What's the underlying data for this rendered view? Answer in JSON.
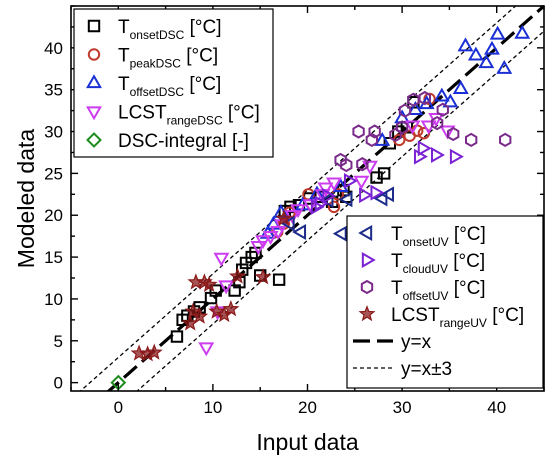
{
  "chart_data": {
    "type": "scatter",
    "xlabel": "Input data",
    "ylabel": "Modeled data",
    "xlim": [
      -5,
      45
    ],
    "ylim": [
      -1,
      45
    ],
    "x_ticks": [
      0,
      10,
      20,
      30,
      40
    ],
    "y_ticks": [
      0,
      5,
      10,
      15,
      20,
      25,
      30,
      35,
      40
    ],
    "grid": false,
    "legends": [
      {
        "position": "top-left",
        "entries": [
          {
            "series": 0,
            "main": "T",
            "sub": "onsetDSC",
            "tail": " [°C]"
          },
          {
            "series": 1,
            "main": "T",
            "sub": "peakDSC",
            "tail": " [°C]"
          },
          {
            "series": 2,
            "main": "T",
            "sub": "offsetDSC",
            "tail": " [°C]"
          },
          {
            "series": 3,
            "main": "LCST",
            "sub": "rangeDSC",
            "tail": " [°C]"
          },
          {
            "series": 4,
            "main": "DSC-integral [-]",
            "sub": "",
            "tail": ""
          }
        ]
      },
      {
        "position": "bottom-right",
        "entries": [
          {
            "series": 5,
            "main": "T",
            "sub": "onsetUV",
            "tail": " [°C]"
          },
          {
            "series": 6,
            "main": "T",
            "sub": "cloudUV",
            "tail": " [°C]"
          },
          {
            "series": 7,
            "main": "T",
            "sub": "offsetUV",
            "tail": " [°C]"
          },
          {
            "series": 8,
            "main": "LCST",
            "sub": "rangeUV",
            "tail": " [°C]"
          },
          {
            "line": "y_equals_x",
            "main": "y=x",
            "sub": "",
            "tail": ""
          },
          {
            "line": "y_equals_x_pm3",
            "main": "y=x±3",
            "sub": "",
            "tail": ""
          }
        ]
      }
    ],
    "reference_lines": [
      {
        "id": "y_equals_x",
        "offset": 0,
        "style": "long-dash",
        "color": "#000000"
      },
      {
        "id": "y_equals_x_pm3",
        "offset": 3,
        "style": "short-dash",
        "color": "#000000"
      },
      {
        "id": "y_equals_x_pm3",
        "offset": -3,
        "style": "short-dash",
        "color": "#000000"
      }
    ],
    "series": [
      {
        "marker": "square",
        "color": "#000000",
        "x": [
          6.2,
          6.8,
          7.3,
          8.0,
          8.6,
          9.8,
          10.3,
          12.3,
          12.8,
          13.1,
          13.5,
          14.1,
          14.5,
          15.0,
          17.0,
          17.6,
          18.2,
          19.1,
          20.2,
          21.4,
          22.6,
          23.8,
          24.1,
          27.3,
          28.1,
          28.7,
          29.6,
          30.5,
          31.2
        ],
        "y": [
          5.5,
          7.5,
          8.0,
          8.5,
          9.0,
          10.1,
          11.0,
          11.0,
          12.0,
          13.5,
          14.3,
          15.0,
          15.5,
          12.8,
          12.3,
          20.5,
          21.0,
          21.2,
          22.0,
          22.2,
          21.6,
          23.0,
          22.2,
          24.5,
          25.0,
          28.6,
          30.0,
          30.5,
          33.5
        ]
      },
      {
        "marker": "circle",
        "color": "#c0392b",
        "x": [
          16.8,
          17.5,
          18.1,
          20.1,
          22.8,
          23.2,
          29.7,
          30.8,
          31.6,
          32.3,
          32.9
        ],
        "y": [
          18.0,
          19.0,
          20.3,
          22.5,
          21.0,
          22.5,
          29.0,
          29.5,
          30.1,
          29.8,
          33.9
        ]
      },
      {
        "marker": "triangle-up",
        "color": "#1a2fd6",
        "x": [
          15.8,
          16.4,
          17.2,
          19.5,
          21.0,
          23.5,
          27.9,
          30.0,
          31.4,
          32.6,
          34.2,
          35.1,
          36.2,
          36.7,
          37.8,
          38.9,
          39.5,
          40.1,
          40.8,
          42.7
        ],
        "y": [
          17.8,
          18.9,
          20.3,
          21.2,
          22.5,
          23.4,
          28.9,
          31.6,
          32.6,
          33.3,
          34.2,
          33.5,
          35.1,
          40.2,
          39.1,
          38.2,
          39.8,
          41.6,
          37.5,
          41.7
        ]
      },
      {
        "marker": "triangle-down",
        "color": "#cc3cf0",
        "x": [
          9.3,
          10.5,
          10.9,
          11.4,
          14.8,
          15.3,
          16.1,
          16.9,
          17.3,
          18.4,
          19.0,
          20.3,
          21.6,
          21.9,
          22.8,
          25.7,
          26.6,
          31.1,
          32.8,
          33.6,
          34.8
        ],
        "y": [
          4.2,
          8.5,
          14.9,
          11.6,
          16.3,
          17.0,
          17.5,
          18.1,
          18.9,
          20.0,
          20.7,
          21.3,
          22.5,
          23.3,
          23.9,
          24.1,
          25.9,
          30.7,
          30.7,
          31.6,
          30.1
        ]
      },
      {
        "marker": "diamond",
        "color": "#1e8c1e",
        "x": [
          0.0
        ],
        "y": [
          0.0
        ]
      },
      {
        "marker": "triangle-left",
        "color": "#1c2a8a",
        "x": [
          18.1,
          19.3,
          22.2,
          23.6,
          24.2,
          27.9,
          28.6
        ],
        "y": [
          19.0,
          18.0,
          21.8,
          17.8,
          21.9,
          22.0,
          22.5
        ]
      },
      {
        "marker": "triangle-right",
        "color": "#7a22d4",
        "x": [
          20.9,
          21.3,
          22.1,
          24.4,
          26.0,
          27.2,
          31.8,
          32.2,
          33.6,
          35.6
        ],
        "y": [
          21.0,
          21.4,
          22.3,
          24.1,
          22.4,
          22.7,
          27.0,
          28.0,
          27.2,
          27.0
        ]
      },
      {
        "marker": "hexagon",
        "color": "#7a2a8a",
        "x": [
          23.5,
          24.1,
          25.4,
          25.8,
          26.8,
          27.1,
          29.3,
          30.0,
          30.3,
          31.2,
          32.4,
          33.7,
          34.3,
          35.4,
          37.3,
          40.9
        ],
        "y": [
          26.6,
          26.0,
          30.0,
          26.1,
          29.0,
          30.0,
          29.6,
          30.5,
          32.5,
          33.8,
          34.0,
          31.0,
          32.6,
          29.7,
          29.0,
          29.0
        ]
      },
      {
        "marker": "star",
        "color": "#8b1a1a",
        "x": [
          2.2,
          3.1,
          3.8,
          7.6,
          7.9,
          8.2,
          8.6,
          9.1,
          9.6,
          10.4,
          11.2,
          11.9,
          12.6,
          15.3,
          17.5
        ],
        "y": [
          3.5,
          3.4,
          3.6,
          7.1,
          8.5,
          12.0,
          7.9,
          12.0,
          11.7,
          8.5,
          8.1,
          8.8,
          12.7,
          12.6,
          19.6
        ]
      }
    ]
  }
}
